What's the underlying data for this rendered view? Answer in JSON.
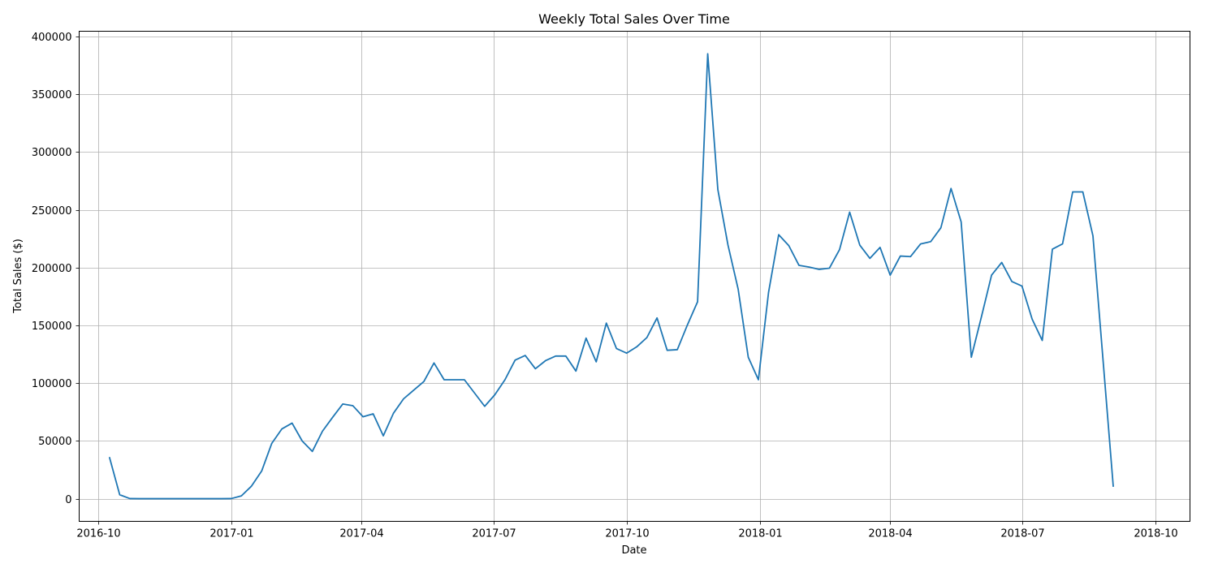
{
  "chart_data": {
    "type": "line",
    "title": "Weekly Total Sales Over Time",
    "xlabel": "Date",
    "ylabel": "Total Sales ($)",
    "x_axis_type": "date",
    "xlim": [
      "2016-09-18",
      "2018-10-25"
    ],
    "ylim": [
      -19500,
      404500
    ],
    "grid": true,
    "x_ticks": [
      "2016-10-01",
      "2017-01-01",
      "2017-04-01",
      "2017-07-01",
      "2017-10-01",
      "2018-01-01",
      "2018-04-01",
      "2018-07-01",
      "2018-10-01"
    ],
    "x_tick_labels": [
      "2016-10",
      "2017-01",
      "2017-04",
      "2017-07",
      "2017-10",
      "2018-01",
      "2018-04",
      "2018-07",
      "2018-10"
    ],
    "y_ticks": [
      0,
      50000,
      100000,
      150000,
      200000,
      250000,
      300000,
      350000,
      400000
    ],
    "y_tick_labels": [
      "0",
      "50000",
      "100000",
      "150000",
      "200000",
      "250000",
      "300000",
      "350000",
      "400000"
    ],
    "series": [
      {
        "color": "#1f77b4",
        "x": [
          "2016-10-09",
          "2016-10-16",
          "2016-10-23",
          "2016-10-30",
          "2016-11-06",
          "2016-11-13",
          "2016-11-20",
          "2016-11-27",
          "2016-12-04",
          "2016-12-11",
          "2016-12-18",
          "2016-12-25",
          "2017-01-01",
          "2017-01-08",
          "2017-01-15",
          "2017-01-22",
          "2017-01-29",
          "2017-02-05",
          "2017-02-12",
          "2017-02-19",
          "2017-02-26",
          "2017-03-05",
          "2017-03-12",
          "2017-03-19",
          "2017-03-26",
          "2017-04-02",
          "2017-04-09",
          "2017-04-16",
          "2017-04-23",
          "2017-04-30",
          "2017-05-07",
          "2017-05-14",
          "2017-05-21",
          "2017-05-28",
          "2017-06-04",
          "2017-06-11",
          "2017-06-18",
          "2017-06-25",
          "2017-07-02",
          "2017-07-09",
          "2017-07-16",
          "2017-07-23",
          "2017-07-30",
          "2017-08-06",
          "2017-08-13",
          "2017-08-20",
          "2017-08-27",
          "2017-09-03",
          "2017-09-10",
          "2017-09-17",
          "2017-09-24",
          "2017-10-01",
          "2017-10-08",
          "2017-10-15",
          "2017-10-22",
          "2017-10-29",
          "2017-11-05",
          "2017-11-12",
          "2017-11-19",
          "2017-11-26",
          "2017-12-03",
          "2017-12-10",
          "2017-12-17",
          "2017-12-24",
          "2017-12-31",
          "2018-01-07",
          "2018-01-14",
          "2018-01-21",
          "2018-01-28",
          "2018-02-04",
          "2018-02-11",
          "2018-02-18",
          "2018-02-25",
          "2018-03-04",
          "2018-03-11",
          "2018-03-18",
          "2018-03-25",
          "2018-04-01",
          "2018-04-08",
          "2018-04-15",
          "2018-04-22",
          "2018-04-29",
          "2018-05-06",
          "2018-05-13",
          "2018-05-20",
          "2018-05-27",
          "2018-06-03",
          "2018-06-10",
          "2018-06-17",
          "2018-06-24",
          "2018-07-01",
          "2018-07-08",
          "2018-07-15",
          "2018-07-22",
          "2018-07-29",
          "2018-08-05",
          "2018-08-12",
          "2018-08-19",
          "2018-08-26",
          "2018-09-02"
        ],
        "y": [
          35500,
          3500,
          200,
          100,
          100,
          100,
          100,
          100,
          100,
          100,
          100,
          100,
          200,
          2500,
          11000,
          24000,
          48000,
          60500,
          65500,
          50000,
          41000,
          58500,
          70500,
          82000,
          80500,
          71000,
          73500,
          54500,
          74000,
          86500,
          94000,
          101500,
          117500,
          103000,
          103000,
          103000,
          91500,
          80000,
          90000,
          103000,
          120000,
          124000,
          112500,
          119500,
          123500,
          123500,
          110500,
          139000,
          118500,
          152000,
          130000,
          126000,
          131500,
          139500,
          156500,
          128500,
          129000,
          150500,
          170500,
          385000,
          267500,
          219500,
          181500,
          122500,
          103000,
          178500,
          228500,
          219000,
          202000,
          200500,
          198500,
          199500,
          215500,
          248000,
          219500,
          208000,
          217500,
          193500,
          210000,
          209500,
          220500,
          222500,
          234500,
          268500,
          239500,
          122500,
          157500,
          193500,
          204500,
          188000,
          184000,
          155500,
          137000,
          216000,
          220500,
          265500,
          265500,
          227500,
          119500,
          11000
        ]
      }
    ]
  }
}
